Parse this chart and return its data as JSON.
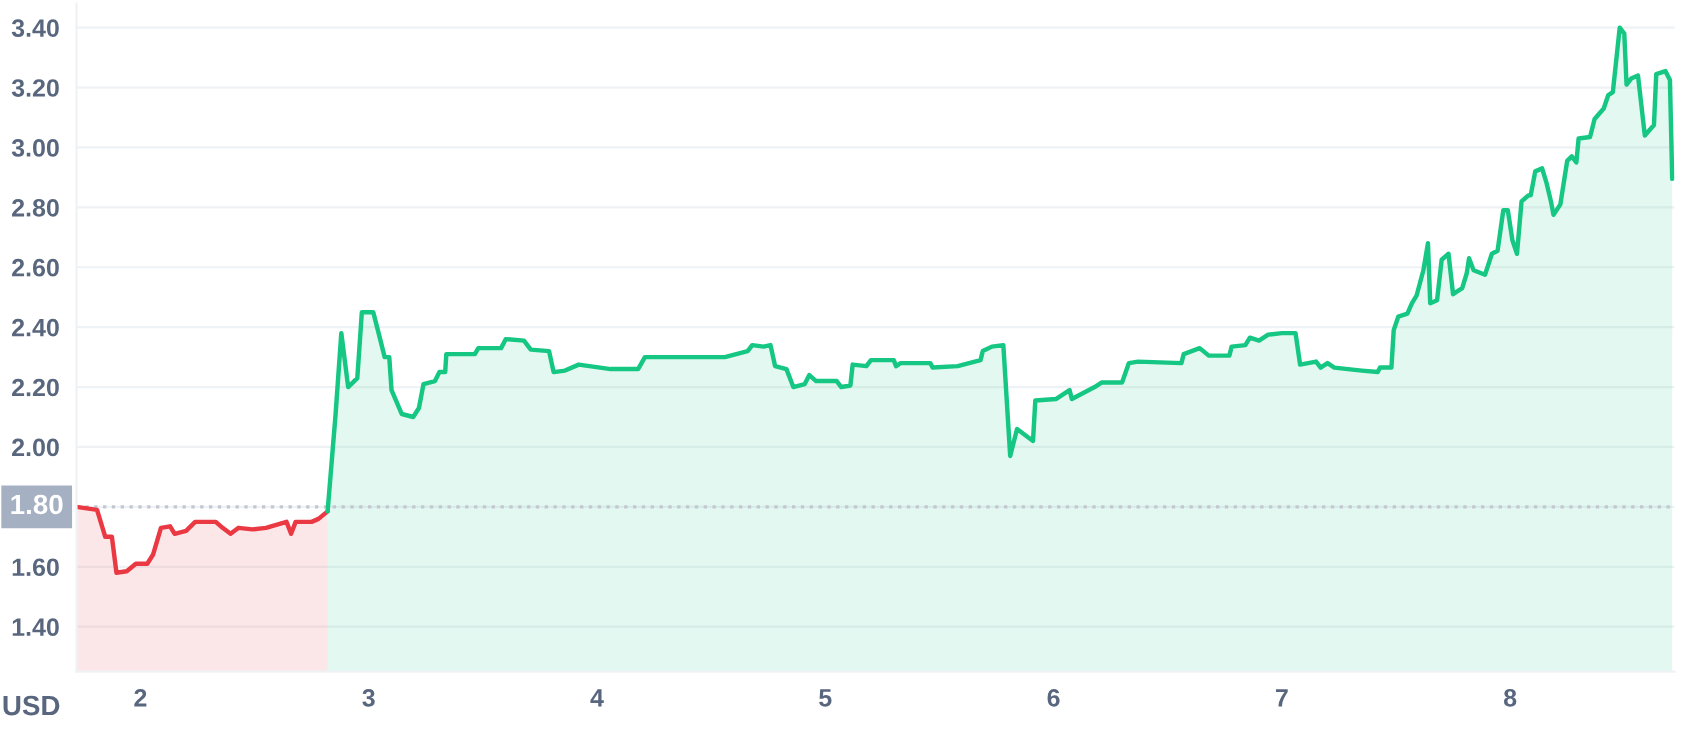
{
  "chart_data": {
    "type": "area",
    "ylabel": "USD",
    "xlim": [
      1.72,
      8.72
    ],
    "ylim": [
      1.25,
      3.48
    ],
    "xticks": [
      2,
      3,
      4,
      5,
      6,
      7,
      8
    ],
    "yticks": [
      {
        "value": 1.4,
        "label": "1.40"
      },
      {
        "value": 1.6,
        "label": "1.60"
      },
      {
        "value": 1.8,
        "label": null
      },
      {
        "value": 2.0,
        "label": "2.00"
      },
      {
        "value": 2.2,
        "label": "2.20"
      },
      {
        "value": 2.4,
        "label": "2.40"
      },
      {
        "value": 2.6,
        "label": "2.60"
      },
      {
        "value": 2.8,
        "label": "2.80"
      },
      {
        "value": 3.0,
        "label": "3.00"
      },
      {
        "value": 3.2,
        "label": "3.20"
      },
      {
        "value": 3.4,
        "label": "3.40"
      }
    ],
    "grid": "y",
    "ref_lines": [
      {
        "axis": "y",
        "value": 1.8,
        "label": "1.80",
        "color": "#c4c7cf",
        "line_style": "dotted"
      }
    ],
    "series": [
      {
        "color": "#ea3943",
        "x": [
          1.72,
          1.81,
          1.846,
          1.875,
          1.895,
          1.94,
          1.98,
          2.03,
          2.055,
          2.09,
          2.13,
          2.15,
          2.2,
          2.24,
          2.33,
          2.36,
          2.395,
          2.43,
          2.49,
          2.55,
          2.64,
          2.66,
          2.68,
          2.75,
          2.78,
          2.82
        ],
        "values": [
          1.8,
          1.79,
          1.7,
          1.7,
          1.58,
          1.585,
          1.61,
          1.61,
          1.64,
          1.73,
          1.735,
          1.71,
          1.72,
          1.75,
          1.75,
          1.73,
          1.71,
          1.73,
          1.725,
          1.73,
          1.75,
          1.71,
          1.75,
          1.75,
          1.76,
          1.785
        ]
      },
      {
        "color": "#16c784",
        "x": [
          2.82,
          2.855,
          2.88,
          2.91,
          2.95,
          2.97,
          3.02,
          3.04,
          3.07,
          3.09,
          3.1,
          3.145,
          3.195,
          3.22,
          3.24,
          3.29,
          3.31,
          3.335,
          3.34,
          3.465,
          3.48,
          3.58,
          3.6,
          3.68,
          3.71,
          3.79,
          3.81,
          3.86,
          3.92,
          4.06,
          4.18,
          4.21,
          4.56,
          4.66,
          4.68,
          4.73,
          4.76,
          4.78,
          4.83,
          4.86,
          4.91,
          4.93,
          4.96,
          5.05,
          5.07,
          5.11,
          5.12,
          5.18,
          5.2,
          5.3,
          5.31,
          5.33,
          5.46,
          5.47,
          5.58,
          5.68,
          5.69,
          5.73,
          5.78,
          5.81,
          5.84,
          5.91,
          5.92,
          6.01,
          6.07,
          6.08,
          6.18,
          6.21,
          6.3,
          6.33,
          6.37,
          6.56,
          6.57,
          6.64,
          6.68,
          6.77,
          6.78,
          6.84,
          6.86,
          6.9,
          6.94,
          7.0,
          7.06,
          7.08,
          7.15,
          7.17,
          7.2,
          7.23,
          7.35,
          7.42,
          7.43,
          7.48,
          7.49,
          7.51,
          7.55,
          7.57,
          7.59,
          7.62,
          7.64,
          7.65,
          7.68,
          7.7,
          7.73,
          7.75,
          7.79,
          7.81,
          7.82,
          7.84,
          7.89,
          7.92,
          7.945,
          7.97,
          7.99,
          8.01,
          8.03,
          8.05,
          8.08,
          8.09,
          8.11,
          8.14,
          8.16,
          8.18,
          8.19,
          8.22,
          8.25,
          8.27,
          8.29,
          8.3,
          8.35,
          8.37,
          8.41,
          8.43,
          8.45,
          8.48,
          8.5,
          8.51,
          8.53,
          8.56,
          8.59,
          8.63,
          8.64,
          8.68,
          8.7,
          8.71
        ],
        "values": [
          1.785,
          2.11,
          2.38,
          2.2,
          2.23,
          2.45,
          2.45,
          2.39,
          2.3,
          2.3,
          2.19,
          2.11,
          2.1,
          2.13,
          2.21,
          2.22,
          2.25,
          2.25,
          2.31,
          2.31,
          2.33,
          2.33,
          2.36,
          2.355,
          2.325,
          2.32,
          2.25,
          2.255,
          2.275,
          2.26,
          2.26,
          2.3,
          2.3,
          2.32,
          2.34,
          2.335,
          2.34,
          2.27,
          2.26,
          2.2,
          2.21,
          2.24,
          2.22,
          2.22,
          2.2,
          2.205,
          2.275,
          2.27,
          2.29,
          2.29,
          2.27,
          2.28,
          2.28,
          2.265,
          2.27,
          2.29,
          2.32,
          2.335,
          2.34,
          1.97,
          2.06,
          2.02,
          2.155,
          2.16,
          2.19,
          2.16,
          2.2,
          2.215,
          2.215,
          2.28,
          2.285,
          2.28,
          2.31,
          2.33,
          2.305,
          2.305,
          2.335,
          2.34,
          2.365,
          2.355,
          2.375,
          2.38,
          2.38,
          2.275,
          2.285,
          2.265,
          2.28,
          2.265,
          2.255,
          2.25,
          2.265,
          2.265,
          2.39,
          2.435,
          2.445,
          2.48,
          2.505,
          2.59,
          2.68,
          2.48,
          2.49,
          2.625,
          2.645,
          2.51,
          2.53,
          2.58,
          2.63,
          2.59,
          2.575,
          2.645,
          2.655,
          2.79,
          2.79,
          2.69,
          2.645,
          2.82,
          2.84,
          2.84,
          2.92,
          2.93,
          2.88,
          2.815,
          2.775,
          2.81,
          2.955,
          2.97,
          2.95,
          3.03,
          3.035,
          3.095,
          3.13,
          3.175,
          3.185,
          3.4,
          3.38,
          3.21,
          3.23,
          3.24,
          3.04,
          3.075,
          3.245,
          3.255,
          3.225,
          2.895
        ]
      }
    ]
  }
}
